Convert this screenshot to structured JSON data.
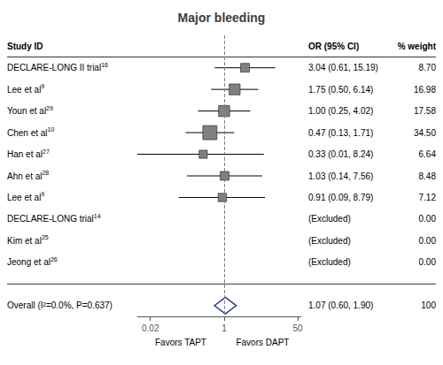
{
  "chart_data": {
    "type": "forest",
    "title": "Major bleeding",
    "log": "x",
    "grid": false,
    "xlim": [
      0.01,
      60
    ],
    "xticks": [
      0.02,
      1,
      50
    ],
    "reference_line": 1,
    "column_headers": [
      "Study ID",
      "OR (95% CI)",
      "% weight"
    ],
    "categories": [
      "DECLARE-LONG II trial",
      "Lee et al",
      "Youn et al",
      "Chen et al",
      "Han et al",
      "Ahn et al",
      "Lee et al",
      "DECLARE-LONG trial",
      "Kim et al",
      "Jeong et al"
    ],
    "superscripts": [
      "16",
      "9",
      "29",
      "10",
      "27",
      "28",
      "9",
      "14",
      "25",
      "26"
    ],
    "values": [
      3.04,
      1.75,
      1.0,
      0.47,
      0.33,
      1.03,
      0.91,
      null,
      null,
      null
    ],
    "ci_low": [
      0.61,
      0.5,
      0.25,
      0.13,
      0.01,
      0.14,
      0.09,
      null,
      null,
      null
    ],
    "ci_high": [
      15.19,
      6.14,
      4.02,
      1.71,
      8.24,
      7.56,
      8.79,
      null,
      null,
      null
    ],
    "value_labels": [
      "3.04 (0.61, 15.19)",
      "1.75 (0.50, 6.14)",
      "1.00 (0.25, 4.02)",
      "0.47 (0.13, 1.71)",
      "0.33 (0.01, 8.24)",
      "1.03 (0.14, 7.56)",
      "0.91 (0.09, 8.79)",
      "(Excluded)",
      "(Excluded)",
      "(Excluded)"
    ],
    "weights": [
      8.7,
      16.98,
      17.58,
      34.5,
      6.64,
      8.48,
      7.12,
      0.0,
      0.0,
      0.0
    ],
    "weight_labels": [
      "8.70",
      "16.98",
      "17.58",
      "34.50",
      "6.64",
      "8.48",
      "7.12",
      "0.00",
      "0.00",
      "0.00"
    ],
    "color": "#808080",
    "overall": {
      "label": "Overall (I²=0.0%, P=0.637)",
      "value": 1.07,
      "ci_low": 0.6,
      "ci_high": 1.9,
      "value_label": "1.07 (0.60, 1.90)",
      "weight": 100,
      "color": "#1f3a7a"
    },
    "annotations": [
      "Favors TAPT",
      "Favors DAPT"
    ]
  }
}
